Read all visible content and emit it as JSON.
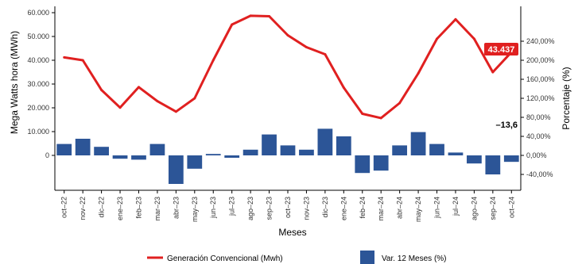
{
  "chart_data": {
    "type": "bar+line",
    "xlabel": "Meses",
    "ylabel_left": "Mega Watts hora (MWh)",
    "ylabel_right": "Porcentaje (%)",
    "categories": [
      "oct–22",
      "nov–22",
      "dic–22",
      "ene–23",
      "feb–23",
      "mar–23",
      "abr–23",
      "may–23",
      "jun–23",
      "jul–23",
      "ago–23",
      "sep–23",
      "oct–23",
      "nov–23",
      "dic–23",
      "ene–24",
      "feb–24",
      "mar–24",
      "abr–24",
      "may–24",
      "jun–24",
      "jul–24",
      "ago–24",
      "sep–24",
      "oct–24"
    ],
    "y_left": {
      "min": 0,
      "max": 60000,
      "ticks": [
        "0",
        "10.000",
        "20.000",
        "30.000",
        "40.000",
        "50.000",
        "60.000"
      ]
    },
    "y_right": {
      "min": -40,
      "max": 240,
      "ticks": [
        "-40,00%",
        "0,00%",
        "40,00%",
        "80,00%",
        "120,00%",
        "160,00%",
        "200,00%",
        "240,00%"
      ]
    },
    "series": [
      {
        "name": "Generación Convencional (Mwh)",
        "type": "line",
        "axis": "left",
        "color": "#e02020",
        "values": [
          41200,
          40000,
          27500,
          20100,
          28700,
          22800,
          18400,
          24000,
          40000,
          55000,
          58700,
          58500,
          50500,
          45500,
          42500,
          28500,
          17500,
          15700,
          22000,
          34500,
          49000,
          57200,
          49000,
          35000,
          43437
        ]
      },
      {
        "name": "Var. 12 Meses (%)",
        "type": "bar",
        "axis": "right",
        "color": "#2c5597",
        "values": [
          24,
          35,
          18,
          -7,
          -9,
          24,
          -60,
          -28,
          3,
          -5,
          12,
          44,
          21,
          12,
          56,
          40,
          -37,
          -32,
          21,
          49,
          24,
          6,
          -17,
          -40,
          -13.6
        ]
      }
    ],
    "annotations": [
      {
        "text": "43.437",
        "style": "label-box",
        "color": "#e02020"
      },
      {
        "text": "–13,6",
        "style": "bold-text",
        "color": "#000000"
      }
    ],
    "legend": {
      "position": "bottom"
    },
    "grid": false
  }
}
